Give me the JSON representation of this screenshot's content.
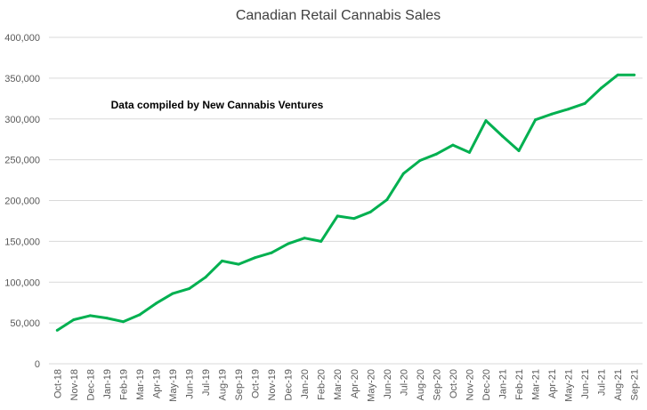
{
  "chart_data": {
    "type": "line",
    "title": "Canadian Retail Cannabis Sales",
    "annotation": "Data compiled by New Cannabis Ventures",
    "xlabel": "",
    "ylabel": "",
    "ylim": [
      0,
      400000
    ],
    "yticks": [
      0,
      50000,
      100000,
      150000,
      200000,
      250000,
      300000,
      350000,
      400000
    ],
    "ytick_labels": [
      "0",
      "50,000",
      "100,000",
      "150,000",
      "200,000",
      "250,000",
      "300,000",
      "350,000",
      "400,000"
    ],
    "grid": true,
    "legend": "none",
    "categories": [
      "Oct-18",
      "Nov-18",
      "Dec-18",
      "Jan-19",
      "Feb-19",
      "Mar-19",
      "Apr-19",
      "May-19",
      "Jun-19",
      "Jul-19",
      "Aug-19",
      "Sep-19",
      "Oct-19",
      "Nov-19",
      "Dec-19",
      "Jan-20",
      "Feb-20",
      "Mar-20",
      "Apr-20",
      "May-20",
      "Jun-20",
      "Jul-20",
      "Aug-20",
      "Sep-20",
      "Oct-20",
      "Nov-20",
      "Dec-20",
      "Jan-21",
      "Feb-21",
      "Mar-21",
      "Apr-21",
      "May-21",
      "Jun-21",
      "Jul-21",
      "Aug-21",
      "Sep-21"
    ],
    "series": [
      {
        "name": "Sales",
        "color": "#00b050",
        "values": [
          41000,
          54000,
          59000,
          56000,
          51500,
          60000,
          74000,
          86000,
          92000,
          106000,
          126000,
          122000,
          130000,
          136000,
          147000,
          154000,
          150000,
          181000,
          178000,
          186000,
          201000,
          233000,
          249000,
          257000,
          268000,
          259000,
          298000,
          279000,
          261000,
          299000,
          306000,
          312000,
          319000,
          338000,
          354000,
          354000
        ]
      }
    ]
  }
}
